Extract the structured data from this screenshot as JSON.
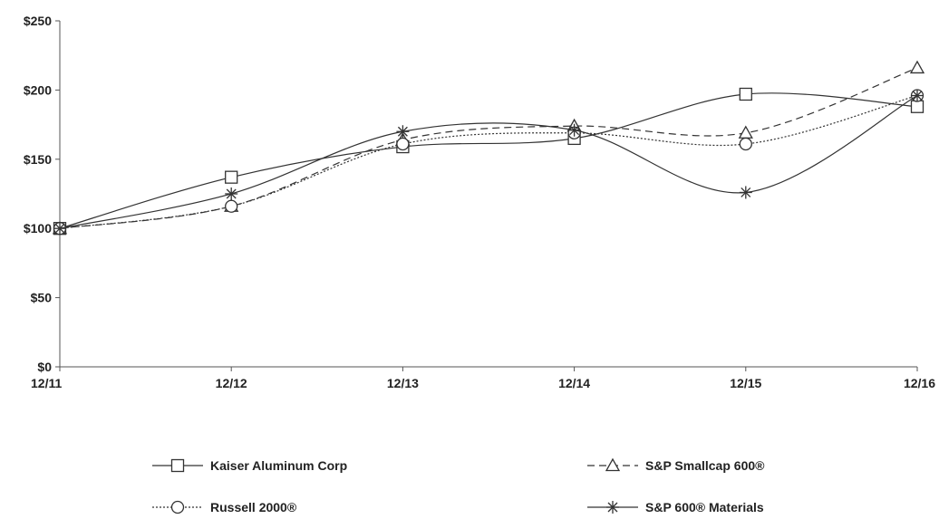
{
  "chart_data": {
    "type": "line",
    "categories": [
      "12/11",
      "12/12",
      "12/13",
      "12/14",
      "12/15",
      "12/16"
    ],
    "yticks": [
      "$0",
      "$50",
      "$100",
      "$150",
      "$200",
      "$250"
    ],
    "ylim": [
      0,
      250
    ],
    "grid": false,
    "legend_position": "bottom",
    "series": [
      {
        "name": "Kaiser Aluminum Corp",
        "marker": "square",
        "dash": "solid",
        "values": [
          100,
          137,
          159,
          165,
          197,
          188
        ]
      },
      {
        "name": "S&P Smallcap 600®",
        "marker": "triangle",
        "dash": "dashed",
        "values": [
          100,
          116,
          164,
          174,
          169,
          216
        ]
      },
      {
        "name": "Russell 2000®",
        "marker": "circle",
        "dash": "dotted",
        "values": [
          100,
          116,
          161,
          169,
          161,
          196
        ]
      },
      {
        "name": "S&P 600® Materials",
        "marker": "star",
        "dash": "solid",
        "values": [
          100,
          125,
          170,
          171,
          126,
          196
        ]
      }
    ],
    "colors": {
      "line": "#333333",
      "axis": "#555555",
      "text": "#222222"
    }
  }
}
